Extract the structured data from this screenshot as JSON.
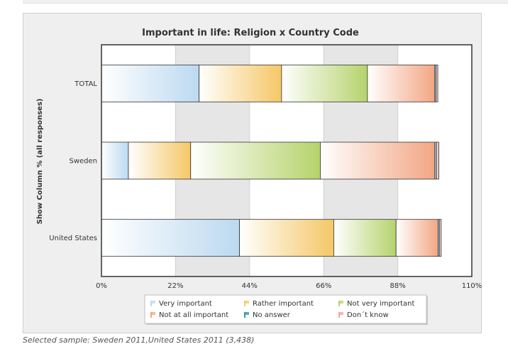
{
  "chart_data": {
    "type": "bar",
    "orientation": "horizontal",
    "stacked": true,
    "title": "Important in life: Religion x Country Code",
    "ylabel": "Show Column % (all responses)",
    "xlabel": "",
    "xlim": [
      0,
      110
    ],
    "tick_values": [
      0,
      22,
      44,
      66,
      88,
      110
    ],
    "tick_labels": [
      "0%",
      "22%",
      "44%",
      "66%",
      "88%",
      "110%"
    ],
    "grid": true,
    "legend_position": "bottom",
    "categories": [
      "TOTAL",
      "Sweden",
      "United States"
    ],
    "series": [
      {
        "name": "Very important",
        "color": "#bcd9f0",
        "values": [
          29,
          8,
          41
        ]
      },
      {
        "name": "Rather important",
        "color": "#f5c766",
        "values": [
          24.5,
          18.5,
          28
        ]
      },
      {
        "name": "Not very important",
        "color": "#b5d36c",
        "values": [
          25.5,
          38.5,
          18.5
        ]
      },
      {
        "name": "Not at all important",
        "color": "#f2a684",
        "values": [
          20,
          34,
          12.5
        ]
      },
      {
        "name": "No answer",
        "color": "#2e9aa0",
        "values": [
          0.4,
          0.5,
          0.4
        ]
      },
      {
        "name": "Don´t know",
        "color": "#f0a4a4",
        "values": [
          0.5,
          0.7,
          0.5
        ]
      }
    ]
  },
  "caption": "Selected sample: Sweden 2011,United States 2011 (3,438)"
}
